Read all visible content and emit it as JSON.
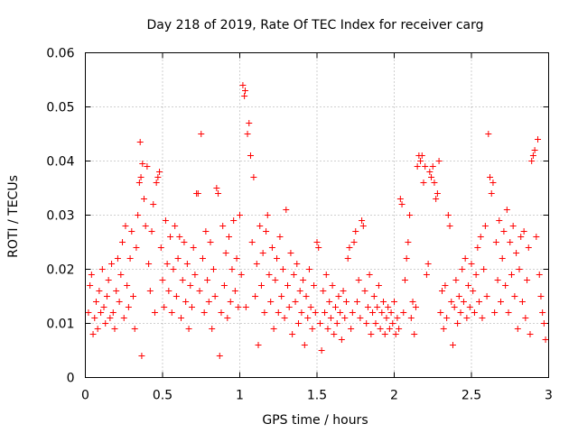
{
  "chart_data": {
    "type": "scatter",
    "title": "Day 218 of 2019, Rate Of TEC Index for receiver carg",
    "xlabel": "GPS time / hours",
    "ylabel": "ROTI / TECUs",
    "xlim": [
      0,
      3
    ],
    "ylim": [
      0,
      0.06
    ],
    "grid": true,
    "marker": "+",
    "color": "#ff0000",
    "x_ticks": [
      0,
      0.5,
      1,
      1.5,
      2,
      2.5,
      3
    ],
    "x_tick_labels": [
      "0",
      "0.5",
      "1",
      "1.5",
      "2",
      "2.5",
      "3"
    ],
    "y_ticks": [
      0,
      0.01,
      0.02,
      0.03,
      0.04,
      0.05,
      0.06
    ],
    "y_tick_labels": [
      "0",
      "0.01",
      "0.02",
      "0.03",
      "0.04",
      "0.05",
      "0.06"
    ],
    "series": [
      {
        "name": "ROTI",
        "points": [
          [
            0.02,
            0.012
          ],
          [
            0.03,
            0.017
          ],
          [
            0.04,
            0.019
          ],
          [
            0.05,
            0.008
          ],
          [
            0.06,
            0.011
          ],
          [
            0.07,
            0.014
          ],
          [
            0.08,
            0.009
          ],
          [
            0.09,
            0.016
          ],
          [
            0.1,
            0.012
          ],
          [
            0.11,
            0.02
          ],
          [
            0.12,
            0.013
          ],
          [
            0.13,
            0.01
          ],
          [
            0.14,
            0.015
          ],
          [
            0.15,
            0.018
          ],
          [
            0.16,
            0.011
          ],
          [
            0.17,
            0.021
          ],
          [
            0.18,
            0.012
          ],
          [
            0.19,
            0.009
          ],
          [
            0.2,
            0.016
          ],
          [
            0.21,
            0.022
          ],
          [
            0.22,
            0.014
          ],
          [
            0.23,
            0.019
          ],
          [
            0.24,
            0.025
          ],
          [
            0.25,
            0.011
          ],
          [
            0.26,
            0.028
          ],
          [
            0.27,
            0.017
          ],
          [
            0.28,
            0.013
          ],
          [
            0.29,
            0.022
          ],
          [
            0.3,
            0.027
          ],
          [
            0.31,
            0.015
          ],
          [
            0.32,
            0.009
          ],
          [
            0.33,
            0.024
          ],
          [
            0.34,
            0.03
          ],
          [
            0.35,
            0.036
          ],
          [
            0.355,
            0.0435
          ],
          [
            0.36,
            0.037
          ],
          [
            0.365,
            0.004
          ],
          [
            0.37,
            0.0395
          ],
          [
            0.38,
            0.033
          ],
          [
            0.39,
            0.028
          ],
          [
            0.4,
            0.039
          ],
          [
            0.41,
            0.021
          ],
          [
            0.42,
            0.016
          ],
          [
            0.43,
            0.027
          ],
          [
            0.44,
            0.032
          ],
          [
            0.45,
            0.012
          ],
          [
            0.46,
            0.036
          ],
          [
            0.47,
            0.037
          ],
          [
            0.48,
            0.038
          ],
          [
            0.49,
            0.024
          ],
          [
            0.5,
            0.018
          ],
          [
            0.51,
            0.013
          ],
          [
            0.52,
            0.029
          ],
          [
            0.53,
            0.021
          ],
          [
            0.54,
            0.016
          ],
          [
            0.55,
            0.026
          ],
          [
            0.56,
            0.012
          ],
          [
            0.57,
            0.02
          ],
          [
            0.58,
            0.028
          ],
          [
            0.59,
            0.015
          ],
          [
            0.6,
            0.022
          ],
          [
            0.61,
            0.026
          ],
          [
            0.62,
            0.011
          ],
          [
            0.63,
            0.018
          ],
          [
            0.64,
            0.025
          ],
          [
            0.65,
            0.014
          ],
          [
            0.66,
            0.021
          ],
          [
            0.67,
            0.009
          ],
          [
            0.68,
            0.017
          ],
          [
            0.69,
            0.013
          ],
          [
            0.7,
            0.024
          ],
          [
            0.71,
            0.019
          ],
          [
            0.72,
            0.034
          ],
          [
            0.73,
            0.034
          ],
          [
            0.74,
            0.016
          ],
          [
            0.75,
            0.045
          ],
          [
            0.76,
            0.022
          ],
          [
            0.77,
            0.012
          ],
          [
            0.78,
            0.027
          ],
          [
            0.79,
            0.018
          ],
          [
            0.8,
            0.014
          ],
          [
            0.81,
            0.025
          ],
          [
            0.82,
            0.009
          ],
          [
            0.83,
            0.02
          ],
          [
            0.84,
            0.015
          ],
          [
            0.85,
            0.035
          ],
          [
            0.86,
            0.034
          ],
          [
            0.87,
            0.004
          ],
          [
            0.88,
            0.012
          ],
          [
            0.89,
            0.028
          ],
          [
            0.9,
            0.017
          ],
          [
            0.91,
            0.023
          ],
          [
            0.92,
            0.011
          ],
          [
            0.93,
            0.026
          ],
          [
            0.94,
            0.014
          ],
          [
            0.95,
            0.02
          ],
          [
            0.96,
            0.029
          ],
          [
            0.97,
            0.016
          ],
          [
            0.98,
            0.022
          ],
          [
            0.99,
            0.013
          ],
          [
            1.0,
            0.03
          ],
          [
            1.01,
            0.019
          ],
          [
            1.02,
            0.054
          ],
          [
            1.03,
            0.052
          ],
          [
            1.035,
            0.053
          ],
          [
            1.04,
            0.013
          ],
          [
            1.05,
            0.045
          ],
          [
            1.06,
            0.047
          ],
          [
            1.07,
            0.041
          ],
          [
            1.08,
            0.025
          ],
          [
            1.09,
            0.037
          ],
          [
            1.1,
            0.015
          ],
          [
            1.11,
            0.021
          ],
          [
            1.12,
            0.006
          ],
          [
            1.13,
            0.028
          ],
          [
            1.14,
            0.017
          ],
          [
            1.15,
            0.023
          ],
          [
            1.16,
            0.012
          ],
          [
            1.17,
            0.027
          ],
          [
            1.18,
            0.03
          ],
          [
            1.19,
            0.019
          ],
          [
            1.2,
            0.014
          ],
          [
            1.21,
            0.024
          ],
          [
            1.22,
            0.009
          ],
          [
            1.23,
            0.018
          ],
          [
            1.24,
            0.022
          ],
          [
            1.25,
            0.012
          ],
          [
            1.26,
            0.026
          ],
          [
            1.27,
            0.015
          ],
          [
            1.28,
            0.02
          ],
          [
            1.29,
            0.011
          ],
          [
            1.3,
            0.031
          ],
          [
            1.31,
            0.017
          ],
          [
            1.32,
            0.013
          ],
          [
            1.33,
            0.023
          ],
          [
            1.34,
            0.008
          ],
          [
            1.35,
            0.019
          ],
          [
            1.36,
            0.014
          ],
          [
            1.37,
            0.021
          ],
          [
            1.38,
            0.01
          ],
          [
            1.39,
            0.016
          ],
          [
            1.4,
            0.012
          ],
          [
            1.41,
            0.018
          ],
          [
            1.42,
            0.006
          ],
          [
            1.43,
            0.015
          ],
          [
            1.44,
            0.011
          ],
          [
            1.45,
            0.02
          ],
          [
            1.46,
            0.013
          ],
          [
            1.47,
            0.009
          ],
          [
            1.48,
            0.017
          ],
          [
            1.49,
            0.012
          ],
          [
            1.5,
            0.025
          ],
          [
            1.51,
            0.024
          ],
          [
            1.52,
            0.01
          ],
          [
            1.53,
            0.005
          ],
          [
            1.54,
            0.016
          ],
          [
            1.55,
            0.012
          ],
          [
            1.56,
            0.019
          ],
          [
            1.57,
            0.009
          ],
          [
            1.58,
            0.014
          ],
          [
            1.59,
            0.011
          ],
          [
            1.6,
            0.017
          ],
          [
            1.61,
            0.008
          ],
          [
            1.62,
            0.013
          ],
          [
            1.63,
            0.01
          ],
          [
            1.64,
            0.015
          ],
          [
            1.65,
            0.012
          ],
          [
            1.66,
            0.007
          ],
          [
            1.67,
            0.016
          ],
          [
            1.68,
            0.011
          ],
          [
            1.69,
            0.014
          ],
          [
            1.7,
            0.022
          ],
          [
            1.71,
            0.024
          ],
          [
            1.72,
            0.009
          ],
          [
            1.73,
            0.012
          ],
          [
            1.74,
            0.025
          ],
          [
            1.75,
            0.027
          ],
          [
            1.76,
            0.014
          ],
          [
            1.77,
            0.018
          ],
          [
            1.78,
            0.011
          ],
          [
            1.79,
            0.029
          ],
          [
            1.8,
            0.028
          ],
          [
            1.81,
            0.016
          ],
          [
            1.82,
            0.01
          ],
          [
            1.83,
            0.013
          ],
          [
            1.84,
            0.019
          ],
          [
            1.85,
            0.008
          ],
          [
            1.86,
            0.012
          ],
          [
            1.87,
            0.015
          ],
          [
            1.88,
            0.01
          ],
          [
            1.89,
            0.013
          ],
          [
            1.9,
            0.017
          ],
          [
            1.91,
            0.009
          ],
          [
            1.92,
            0.012
          ],
          [
            1.93,
            0.014
          ],
          [
            1.94,
            0.008
          ],
          [
            1.95,
            0.011
          ],
          [
            1.96,
            0.013
          ],
          [
            1.97,
            0.009
          ],
          [
            1.98,
            0.012
          ],
          [
            1.99,
            0.01
          ],
          [
            2.0,
            0.014
          ],
          [
            2.01,
            0.008
          ],
          [
            2.02,
            0.011
          ],
          [
            2.03,
            0.009
          ],
          [
            2.04,
            0.033
          ],
          [
            2.05,
            0.032
          ],
          [
            2.06,
            0.012
          ],
          [
            2.07,
            0.018
          ],
          [
            2.08,
            0.022
          ],
          [
            2.09,
            0.025
          ],
          [
            2.1,
            0.03
          ],
          [
            2.11,
            0.011
          ],
          [
            2.12,
            0.014
          ],
          [
            2.13,
            0.008
          ],
          [
            2.14,
            0.013
          ],
          [
            2.15,
            0.039
          ],
          [
            2.16,
            0.041
          ],
          [
            2.17,
            0.04
          ],
          [
            2.18,
            0.041
          ],
          [
            2.19,
            0.036
          ],
          [
            2.2,
            0.039
          ],
          [
            2.21,
            0.019
          ],
          [
            2.22,
            0.021
          ],
          [
            2.23,
            0.038
          ],
          [
            2.24,
            0.037
          ],
          [
            2.25,
            0.039
          ],
          [
            2.26,
            0.036
          ],
          [
            2.27,
            0.033
          ],
          [
            2.28,
            0.034
          ],
          [
            2.29,
            0.04
          ],
          [
            2.3,
            0.012
          ],
          [
            2.31,
            0.016
          ],
          [
            2.32,
            0.009
          ],
          [
            2.33,
            0.017
          ],
          [
            2.34,
            0.011
          ],
          [
            2.35,
            0.03
          ],
          [
            2.36,
            0.028
          ],
          [
            2.37,
            0.014
          ],
          [
            2.38,
            0.006
          ],
          [
            2.39,
            0.013
          ],
          [
            2.4,
            0.018
          ],
          [
            2.41,
            0.01
          ],
          [
            2.42,
            0.015
          ],
          [
            2.43,
            0.012
          ],
          [
            2.44,
            0.02
          ],
          [
            2.45,
            0.014
          ],
          [
            2.46,
            0.022
          ],
          [
            2.47,
            0.011
          ],
          [
            2.48,
            0.017
          ],
          [
            2.49,
            0.013
          ],
          [
            2.5,
            0.021
          ],
          [
            2.51,
            0.016
          ],
          [
            2.52,
            0.012
          ],
          [
            2.53,
            0.019
          ],
          [
            2.54,
            0.024
          ],
          [
            2.55,
            0.014
          ],
          [
            2.56,
            0.026
          ],
          [
            2.57,
            0.011
          ],
          [
            2.58,
            0.02
          ],
          [
            2.59,
            0.028
          ],
          [
            2.6,
            0.015
          ],
          [
            2.61,
            0.045
          ],
          [
            2.62,
            0.037
          ],
          [
            2.63,
            0.034
          ],
          [
            2.64,
            0.036
          ],
          [
            2.65,
            0.012
          ],
          [
            2.66,
            0.025
          ],
          [
            2.67,
            0.018
          ],
          [
            2.68,
            0.029
          ],
          [
            2.69,
            0.014
          ],
          [
            2.7,
            0.022
          ],
          [
            2.71,
            0.027
          ],
          [
            2.72,
            0.017
          ],
          [
            2.73,
            0.031
          ],
          [
            2.74,
            0.012
          ],
          [
            2.75,
            0.025
          ],
          [
            2.76,
            0.019
          ],
          [
            2.77,
            0.028
          ],
          [
            2.78,
            0.015
          ],
          [
            2.79,
            0.023
          ],
          [
            2.8,
            0.009
          ],
          [
            2.81,
            0.02
          ],
          [
            2.82,
            0.026
          ],
          [
            2.83,
            0.014
          ],
          [
            2.84,
            0.027
          ],
          [
            2.85,
            0.011
          ],
          [
            2.86,
            0.018
          ],
          [
            2.87,
            0.024
          ],
          [
            2.88,
            0.008
          ],
          [
            2.89,
            0.04
          ],
          [
            2.9,
            0.041
          ],
          [
            2.91,
            0.042
          ],
          [
            2.92,
            0.026
          ],
          [
            2.93,
            0.044
          ],
          [
            2.94,
            0.019
          ],
          [
            2.95,
            0.015
          ],
          [
            2.96,
            0.012
          ],
          [
            2.97,
            0.01
          ],
          [
            2.98,
            0.007
          ]
        ]
      }
    ]
  }
}
